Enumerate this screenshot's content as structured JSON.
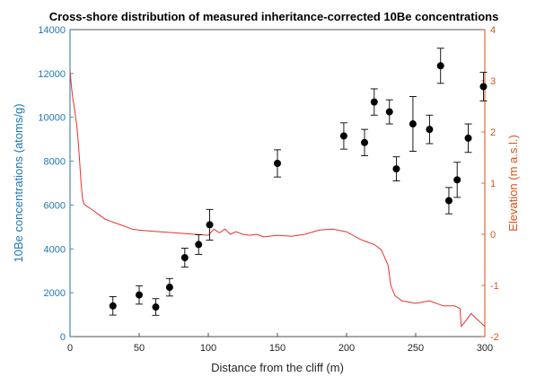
{
  "chart_data": {
    "type": "scatter",
    "title": "Cross-shore distribution of measured inheritance-corrected 10Be concentrations",
    "xlabel": "Distance from the cliff (m)",
    "ylabel_left": "10Be concentrations (atoms/g)",
    "ylabel_right": "Elevation (m a.s.l.)",
    "xlim": [
      0,
      300
    ],
    "ylim_left": [
      0,
      14000
    ],
    "ylim_right": [
      -2,
      4
    ],
    "x_ticks": [
      "0",
      "50",
      "100",
      "150",
      "200",
      "250",
      "300"
    ],
    "y_left_ticks": [
      "0",
      "2000",
      "4000",
      "6000",
      "8000",
      "10000",
      "12000",
      "14000"
    ],
    "y_right_ticks": [
      "-2",
      "-1",
      "0",
      "1",
      "2",
      "3",
      "4"
    ],
    "colors": {
      "left_axis": "#1f77b4",
      "right_axis": "#d95319",
      "profile_line": "#e8322e",
      "points": "#000000"
    },
    "grid": false,
    "samples": [
      {
        "x": 31,
        "y": 1400,
        "err": 420
      },
      {
        "x": 50,
        "y": 1900,
        "err": 420
      },
      {
        "x": 62,
        "y": 1350,
        "err": 380
      },
      {
        "x": 72,
        "y": 2250,
        "err": 400
      },
      {
        "x": 83,
        "y": 3600,
        "err": 430
      },
      {
        "x": 93,
        "y": 4200,
        "err": 450
      },
      {
        "x": 101,
        "y": 5100,
        "err": 700
      },
      {
        "x": 150,
        "y": 7900,
        "err": 620
      },
      {
        "x": 198,
        "y": 9150,
        "err": 600
      },
      {
        "x": 213,
        "y": 8850,
        "err": 600
      },
      {
        "x": 220,
        "y": 10700,
        "err": 600
      },
      {
        "x": 231,
        "y": 10250,
        "err": 550
      },
      {
        "x": 236,
        "y": 7650,
        "err": 550
      },
      {
        "x": 248,
        "y": 9700,
        "err": 1250
      },
      {
        "x": 260,
        "y": 9450,
        "err": 650
      },
      {
        "x": 268,
        "y": 12350,
        "err": 800
      },
      {
        "x": 274,
        "y": 6200,
        "err": 600
      },
      {
        "x": 280,
        "y": 7150,
        "err": 800
      },
      {
        "x": 288,
        "y": 9050,
        "err": 650
      },
      {
        "x": 299,
        "y": 11400,
        "err": 650
      }
    ],
    "elevation_profile": {
      "x": [
        0,
        1,
        2,
        3,
        4,
        5,
        6,
        7,
        8,
        9,
        10,
        12,
        15,
        20,
        25,
        30,
        35,
        40,
        45,
        50,
        60,
        70,
        80,
        90,
        100,
        104,
        108,
        112,
        116,
        120,
        125,
        130,
        135,
        140,
        150,
        160,
        170,
        180,
        190,
        200,
        210,
        215,
        220,
        225,
        230,
        232,
        235,
        240,
        250,
        260,
        270,
        278,
        282,
        283,
        286,
        290,
        300
      ],
      "y": [
        3.2,
        2.9,
        2.65,
        2.5,
        2.3,
        2.1,
        1.8,
        1.4,
        1.0,
        0.7,
        0.6,
        0.55,
        0.5,
        0.4,
        0.3,
        0.25,
        0.2,
        0.15,
        0.1,
        0.08,
        0.06,
        0.04,
        0.02,
        0.0,
        -0.02,
        0.1,
        0.03,
        0.1,
        0.0,
        0.05,
        0.0,
        -0.02,
        0.0,
        -0.05,
        -0.02,
        -0.04,
        0.0,
        0.08,
        0.1,
        0.05,
        -0.1,
        -0.15,
        -0.2,
        -0.3,
        -0.6,
        -1.0,
        -1.2,
        -1.3,
        -1.35,
        -1.3,
        -1.4,
        -1.4,
        -1.45,
        -1.8,
        -1.7,
        -1.55,
        -1.8
      ]
    }
  }
}
